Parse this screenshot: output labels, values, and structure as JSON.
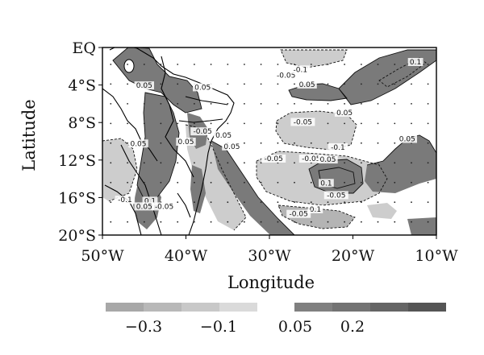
{
  "map": {
    "x_axis": {
      "title": "Longitude",
      "ticks": [
        {
          "value": -50,
          "label": "50°W"
        },
        {
          "value": -40,
          "label": "40°W"
        },
        {
          "value": -30,
          "label": "30°W"
        },
        {
          "value": -20,
          "label": "20°W"
        },
        {
          "value": -10,
          "label": "10°W"
        }
      ],
      "range": [
        -50,
        -10
      ]
    },
    "y_axis": {
      "title": "Latitude",
      "ticks": [
        {
          "value": 0,
          "label": "EQ"
        },
        {
          "value": -4,
          "label": "4°S"
        },
        {
          "value": -8,
          "label": "8°S"
        },
        {
          "value": -12,
          "label": "12°S"
        },
        {
          "value": -16,
          "label": "16°S"
        },
        {
          "value": -20,
          "label": "20°S"
        }
      ],
      "range": [
        -20,
        0
      ]
    },
    "contour_labels": [
      {
        "text": "0.1",
        "lon": -12.5,
        "lat": -1.8
      },
      {
        "text": "-0.05",
        "lon": -28,
        "lat": -3.2
      },
      {
        "text": "-0.1",
        "lon": -26.3,
        "lat": -2.6
      },
      {
        "text": "0.05",
        "lon": -25.5,
        "lat": -4.2
      },
      {
        "text": "0.05",
        "lon": -45,
        "lat": -4.3
      },
      {
        "text": "0.05",
        "lon": -38,
        "lat": -4.5
      },
      {
        "text": "0.05",
        "lon": -21,
        "lat": -7.2
      },
      {
        "text": "-0.05",
        "lon": -26,
        "lat": -8.2
      },
      {
        "text": "-0.05",
        "lon": -38,
        "lat": -9.2
      },
      {
        "text": "0.05",
        "lon": -35.5,
        "lat": -9.6
      },
      {
        "text": "0.05",
        "lon": -40,
        "lat": -10.3
      },
      {
        "text": "0.05",
        "lon": -45.7,
        "lat": -10.5
      },
      {
        "text": "0.05",
        "lon": -34.5,
        "lat": -10.8
      },
      {
        "text": "-0.1",
        "lon": -21.8,
        "lat": -10.9
      },
      {
        "text": "0.05",
        "lon": -13.5,
        "lat": -10
      },
      {
        "text": "-0.05",
        "lon": -29.5,
        "lat": -12.1
      },
      {
        "text": "-0.05",
        "lon": -25,
        "lat": -12.1
      },
      {
        "text": "0.05",
        "lon": -23,
        "lat": -12.2
      },
      {
        "text": "0.1",
        "lon": -23.2,
        "lat": -14.7
      },
      {
        "text": "0.1",
        "lon": -44.3,
        "lat": -16.6
      },
      {
        "text": "-0.1",
        "lon": -47.3,
        "lat": -16.5
      },
      {
        "text": "-0.05",
        "lon": -22,
        "lat": -16
      },
      {
        "text": "-0.05",
        "lon": -42.6,
        "lat": -17.2
      },
      {
        "text": "0.05",
        "lon": -45,
        "lat": -17.2
      },
      {
        "text": "0.1",
        "lon": -24.5,
        "lat": -17.5
      },
      {
        "text": "-0.05",
        "lon": -26.5,
        "lat": -18
      }
    ]
  },
  "colorbar": {
    "negative_colors": [
      "#a8a8a8",
      "#b8b8b8",
      "#c8c8c8",
      "#dadada"
    ],
    "positive_colors": [
      "#808080",
      "#737373",
      "#656565",
      "#555555"
    ],
    "labels": [
      {
        "text": "−0.3",
        "value": -0.3
      },
      {
        "text": "−0.1",
        "value": -0.1
      },
      {
        "text": "0.05",
        "value": 0.05
      },
      {
        "text": "0.2",
        "value": 0.2
      }
    ]
  },
  "colors": {
    "positive_fill": "#7a7a7a",
    "negative_fill": "#cdcdcd",
    "strong_negative_fill": "#b4b4b4",
    "contour_line": "#111111",
    "frame": "#000000"
  }
}
